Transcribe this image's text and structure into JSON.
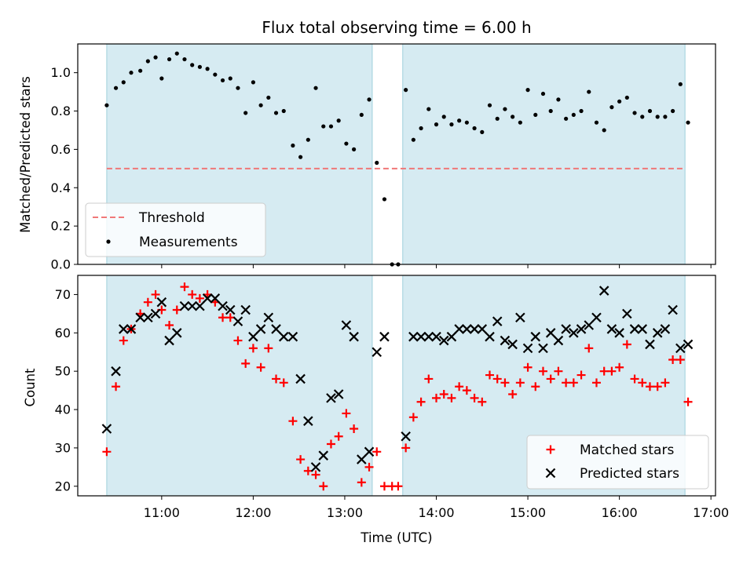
{
  "chart_data": [
    {
      "type": "scatter",
      "title": "Flux total observing time = 6.00 h",
      "ylabel": "Matched/Predicted stars",
      "xlabel": "",
      "ylim": [
        0,
        1.15
      ],
      "yticks": [
        0.0,
        0.2,
        0.4,
        0.6,
        0.8,
        1.0
      ],
      "ytick_labels": [
        "0.0",
        "0.2",
        "0.4",
        "0.6",
        "0.8",
        "1.0"
      ],
      "xlim": [
        "10:05",
        "17:03"
      ],
      "xticks": [
        "11:00",
        "12:00",
        "13:00",
        "14:00",
        "15:00",
        "16:00",
        "17:00"
      ],
      "shaded_spans": [
        [
          "10:24",
          "13:18"
        ],
        [
          "13:38",
          "16:43"
        ]
      ],
      "threshold": {
        "name": "Threshold",
        "y": 0.5,
        "x_start": "10:24",
        "x_end": "16:43",
        "color": "#f07878"
      },
      "legend": {
        "position": "lower-left",
        "entries": [
          "Threshold",
          "Measurements"
        ]
      },
      "series": [
        {
          "name": "Measurements",
          "marker": "dot",
          "color": "#000000",
          "points": [
            [
              "10:24",
              0.83
            ],
            [
              "10:30",
              0.92
            ],
            [
              "10:35",
              0.95
            ],
            [
              "10:40",
              1.0
            ],
            [
              "10:46",
              1.01
            ],
            [
              "10:51",
              1.06
            ],
            [
              "10:56",
              1.08
            ],
            [
              "11:00",
              0.97
            ],
            [
              "11:05",
              1.07
            ],
            [
              "11:10",
              1.1
            ],
            [
              "11:15",
              1.07
            ],
            [
              "11:20",
              1.04
            ],
            [
              "11:25",
              1.03
            ],
            [
              "11:30",
              1.02
            ],
            [
              "11:35",
              0.99
            ],
            [
              "11:40",
              0.96
            ],
            [
              "11:45",
              0.97
            ],
            [
              "11:50",
              0.92
            ],
            [
              "11:55",
              0.79
            ],
            [
              "12:00",
              0.95
            ],
            [
              "12:05",
              0.83
            ],
            [
              "12:10",
              0.87
            ],
            [
              "12:15",
              0.79
            ],
            [
              "12:20",
              0.8
            ],
            [
              "12:26",
              0.62
            ],
            [
              "12:31",
              0.56
            ],
            [
              "12:36",
              0.65
            ],
            [
              "12:41",
              0.92
            ],
            [
              "12:46",
              0.72
            ],
            [
              "12:51",
              0.72
            ],
            [
              "12:56",
              0.75
            ],
            [
              "13:01",
              0.63
            ],
            [
              "13:06",
              0.6
            ],
            [
              "13:11",
              0.78
            ],
            [
              "13:16",
              0.86
            ],
            [
              "13:21",
              0.53
            ],
            [
              "13:26",
              0.34
            ],
            [
              "13:31",
              0.0
            ],
            [
              "13:35",
              0.0
            ],
            [
              "13:40",
              0.91
            ],
            [
              "13:45",
              0.65
            ],
            [
              "13:50",
              0.71
            ],
            [
              "13:55",
              0.81
            ],
            [
              "14:00",
              0.73
            ],
            [
              "14:05",
              0.77
            ],
            [
              "14:10",
              0.73
            ],
            [
              "14:15",
              0.75
            ],
            [
              "14:20",
              0.74
            ],
            [
              "14:25",
              0.71
            ],
            [
              "14:30",
              0.69
            ],
            [
              "14:35",
              0.83
            ],
            [
              "14:40",
              0.76
            ],
            [
              "14:45",
              0.81
            ],
            [
              "14:50",
              0.77
            ],
            [
              "14:55",
              0.74
            ],
            [
              "15:00",
              0.91
            ],
            [
              "15:05",
              0.78
            ],
            [
              "15:10",
              0.89
            ],
            [
              "15:15",
              0.8
            ],
            [
              "15:20",
              0.86
            ],
            [
              "15:25",
              0.76
            ],
            [
              "15:30",
              0.78
            ],
            [
              "15:35",
              0.8
            ],
            [
              "15:40",
              0.9
            ],
            [
              "15:45",
              0.74
            ],
            [
              "15:50",
              0.7
            ],
            [
              "15:55",
              0.82
            ],
            [
              "16:00",
              0.85
            ],
            [
              "16:05",
              0.87
            ],
            [
              "16:10",
              0.79
            ],
            [
              "16:15",
              0.77
            ],
            [
              "16:20",
              0.8
            ],
            [
              "16:25",
              0.77
            ],
            [
              "16:30",
              0.77
            ],
            [
              "16:35",
              0.8
            ],
            [
              "16:40",
              0.94
            ],
            [
              "16:45",
              0.74
            ]
          ]
        }
      ]
    },
    {
      "type": "scatter",
      "title": "",
      "ylabel": "Count",
      "xlabel": "Time (UTC)",
      "ylim": [
        17.5,
        75
      ],
      "yticks": [
        20,
        30,
        40,
        50,
        60,
        70
      ],
      "ytick_labels": [
        "20",
        "30",
        "40",
        "50",
        "60",
        "70"
      ],
      "xlim": [
        "10:05",
        "17:03"
      ],
      "xticks": [
        "11:00",
        "12:00",
        "13:00",
        "14:00",
        "15:00",
        "16:00",
        "17:00"
      ],
      "xtick_labels": [
        "11:00",
        "12:00",
        "13:00",
        "14:00",
        "15:00",
        "16:00",
        "17:00"
      ],
      "shaded_spans": [
        [
          "10:24",
          "13:18"
        ],
        [
          "13:38",
          "16:43"
        ]
      ],
      "legend": {
        "position": "lower-right",
        "entries": [
          "Matched stars",
          "Predicted stars"
        ]
      },
      "series": [
        {
          "name": "Matched stars",
          "marker": "plus",
          "color": "#ff0000",
          "points": [
            [
              "10:24",
              29
            ],
            [
              "10:30",
              46
            ],
            [
              "10:35",
              58
            ],
            [
              "10:40",
              61
            ],
            [
              "10:46",
              65
            ],
            [
              "10:51",
              68
            ],
            [
              "10:56",
              70
            ],
            [
              "11:00",
              66
            ],
            [
              "11:05",
              62
            ],
            [
              "11:10",
              66
            ],
            [
              "11:15",
              72
            ],
            [
              "11:20",
              70
            ],
            [
              "11:25",
              69
            ],
            [
              "11:30",
              70
            ],
            [
              "11:35",
              68
            ],
            [
              "11:40",
              64
            ],
            [
              "11:45",
              64
            ],
            [
              "11:50",
              58
            ],
            [
              "11:55",
              52
            ],
            [
              "12:00",
              56
            ],
            [
              "12:05",
              51
            ],
            [
              "12:10",
              56
            ],
            [
              "12:15",
              48
            ],
            [
              "12:20",
              47
            ],
            [
              "12:26",
              37
            ],
            [
              "12:31",
              27
            ],
            [
              "12:36",
              24
            ],
            [
              "12:41",
              23
            ],
            [
              "12:46",
              20
            ],
            [
              "12:51",
              31
            ],
            [
              "12:56",
              33
            ],
            [
              "13:01",
              39
            ],
            [
              "13:06",
              35
            ],
            [
              "13:11",
              21
            ],
            [
              "13:16",
              25
            ],
            [
              "13:21",
              29
            ],
            [
              "13:26",
              20
            ],
            [
              "13:31",
              20
            ],
            [
              "13:35",
              20
            ],
            [
              "13:40",
              30
            ],
            [
              "13:45",
              38
            ],
            [
              "13:50",
              42
            ],
            [
              "13:55",
              48
            ],
            [
              "14:00",
              43
            ],
            [
              "14:05",
              44
            ],
            [
              "14:10",
              43
            ],
            [
              "14:15",
              46
            ],
            [
              "14:20",
              45
            ],
            [
              "14:25",
              43
            ],
            [
              "14:30",
              42
            ],
            [
              "14:35",
              49
            ],
            [
              "14:40",
              48
            ],
            [
              "14:45",
              47
            ],
            [
              "14:50",
              44
            ],
            [
              "14:55",
              47
            ],
            [
              "15:00",
              51
            ],
            [
              "15:05",
              46
            ],
            [
              "15:10",
              50
            ],
            [
              "15:15",
              48
            ],
            [
              "15:20",
              50
            ],
            [
              "15:25",
              47
            ],
            [
              "15:30",
              47
            ],
            [
              "15:35",
              49
            ],
            [
              "15:40",
              56
            ],
            [
              "15:45",
              47
            ],
            [
              "15:50",
              50
            ],
            [
              "15:55",
              50
            ],
            [
              "16:00",
              51
            ],
            [
              "16:05",
              57
            ],
            [
              "16:10",
              48
            ],
            [
              "16:15",
              47
            ],
            [
              "16:20",
              46
            ],
            [
              "16:25",
              46
            ],
            [
              "16:30",
              47
            ],
            [
              "16:35",
              53
            ],
            [
              "16:40",
              53
            ],
            [
              "16:45",
              42
            ]
          ]
        },
        {
          "name": "Predicted stars",
          "marker": "x",
          "color": "#000000",
          "points": [
            [
              "10:24",
              35
            ],
            [
              "10:30",
              50
            ],
            [
              "10:35",
              61
            ],
            [
              "10:40",
              61
            ],
            [
              "10:46",
              64
            ],
            [
              "10:51",
              64
            ],
            [
              "10:56",
              65
            ],
            [
              "11:00",
              68
            ],
            [
              "11:05",
              58
            ],
            [
              "11:10",
              60
            ],
            [
              "11:15",
              67
            ],
            [
              "11:20",
              67
            ],
            [
              "11:25",
              67
            ],
            [
              "11:30",
              69
            ],
            [
              "11:35",
              69
            ],
            [
              "11:40",
              67
            ],
            [
              "11:45",
              66
            ],
            [
              "11:50",
              63
            ],
            [
              "11:55",
              66
            ],
            [
              "12:00",
              59
            ],
            [
              "12:05",
              61
            ],
            [
              "12:10",
              64
            ],
            [
              "12:15",
              61
            ],
            [
              "12:20",
              59
            ],
            [
              "12:26",
              59
            ],
            [
              "12:31",
              48
            ],
            [
              "12:36",
              37
            ],
            [
              "12:41",
              25
            ],
            [
              "12:46",
              28
            ],
            [
              "12:51",
              43
            ],
            [
              "12:56",
              44
            ],
            [
              "13:01",
              62
            ],
            [
              "13:06",
              59
            ],
            [
              "13:11",
              27
            ],
            [
              "13:16",
              29
            ],
            [
              "13:21",
              55
            ],
            [
              "13:26",
              59
            ],
            [
              "13:40",
              33
            ],
            [
              "13:45",
              59
            ],
            [
              "13:50",
              59
            ],
            [
              "13:55",
              59
            ],
            [
              "14:00",
              59
            ],
            [
              "14:05",
              58
            ],
            [
              "14:10",
              59
            ],
            [
              "14:15",
              61
            ],
            [
              "14:20",
              61
            ],
            [
              "14:25",
              61
            ],
            [
              "14:30",
              61
            ],
            [
              "14:35",
              59
            ],
            [
              "14:40",
              63
            ],
            [
              "14:45",
              58
            ],
            [
              "14:50",
              57
            ],
            [
              "14:55",
              64
            ],
            [
              "15:00",
              56
            ],
            [
              "15:05",
              59
            ],
            [
              "15:10",
              56
            ],
            [
              "15:15",
              60
            ],
            [
              "15:20",
              58
            ],
            [
              "15:25",
              61
            ],
            [
              "15:30",
              60
            ],
            [
              "15:35",
              61
            ],
            [
              "15:40",
              62
            ],
            [
              "15:45",
              64
            ],
            [
              "15:50",
              71
            ],
            [
              "15:55",
              61
            ],
            [
              "16:00",
              60
            ],
            [
              "16:05",
              65
            ],
            [
              "16:10",
              61
            ],
            [
              "16:15",
              61
            ],
            [
              "16:20",
              57
            ],
            [
              "16:25",
              60
            ],
            [
              "16:30",
              61
            ],
            [
              "16:35",
              66
            ],
            [
              "16:40",
              56
            ],
            [
              "16:45",
              57
            ]
          ]
        }
      ]
    }
  ]
}
